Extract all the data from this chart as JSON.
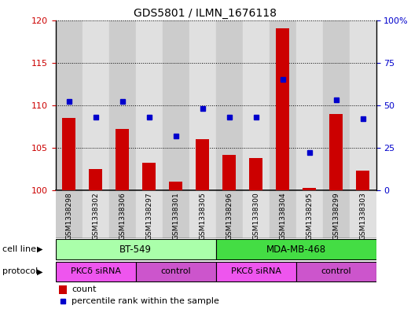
{
  "title": "GDS5801 / ILMN_1676118",
  "samples": [
    "GSM1338298",
    "GSM1338302",
    "GSM1338306",
    "GSM1338297",
    "GSM1338301",
    "GSM1338305",
    "GSM1338296",
    "GSM1338300",
    "GSM1338304",
    "GSM1338295",
    "GSM1338299",
    "GSM1338303"
  ],
  "counts": [
    108.5,
    102.5,
    107.2,
    103.2,
    101.0,
    106.0,
    104.2,
    103.8,
    119.0,
    100.3,
    109.0,
    102.3
  ],
  "percentiles": [
    52,
    43,
    52,
    43,
    32,
    48,
    43,
    43,
    65,
    22,
    53,
    42
  ],
  "ylim_left": [
    100,
    120
  ],
  "ylim_right": [
    0,
    100
  ],
  "yticks_left": [
    100,
    105,
    110,
    115,
    120
  ],
  "yticks_right": [
    0,
    25,
    50,
    75,
    100
  ],
  "ytick_labels_right": [
    "0",
    "25",
    "50",
    "75",
    "100%"
  ],
  "bar_color": "#cc0000",
  "dot_color": "#0000cc",
  "cell_line_groups": [
    {
      "label": "BT-549",
      "start": 0,
      "end": 6,
      "color": "#aaffaa"
    },
    {
      "label": "MDA-MB-468",
      "start": 6,
      "end": 12,
      "color": "#44dd44"
    }
  ],
  "protocol_groups": [
    {
      "label": "PKCδ siRNA",
      "start": 0,
      "end": 3,
      "color": "#ee55ee"
    },
    {
      "label": "control",
      "start": 3,
      "end": 6,
      "color": "#cc55cc"
    },
    {
      "label": "PKCδ siRNA",
      "start": 6,
      "end": 9,
      "color": "#ee55ee"
    },
    {
      "label": "control",
      "start": 9,
      "end": 12,
      "color": "#cc55cc"
    }
  ],
  "legend_count_label": "count",
  "legend_pct_label": "percentile rank within the sample",
  "cell_line_label": "cell line",
  "protocol_label": "protocol",
  "bar_stripe_even": "#cccccc",
  "bar_stripe_odd": "#e0e0e0",
  "tick_label_color_left": "#cc0000",
  "tick_label_color_right": "#0000cc"
}
